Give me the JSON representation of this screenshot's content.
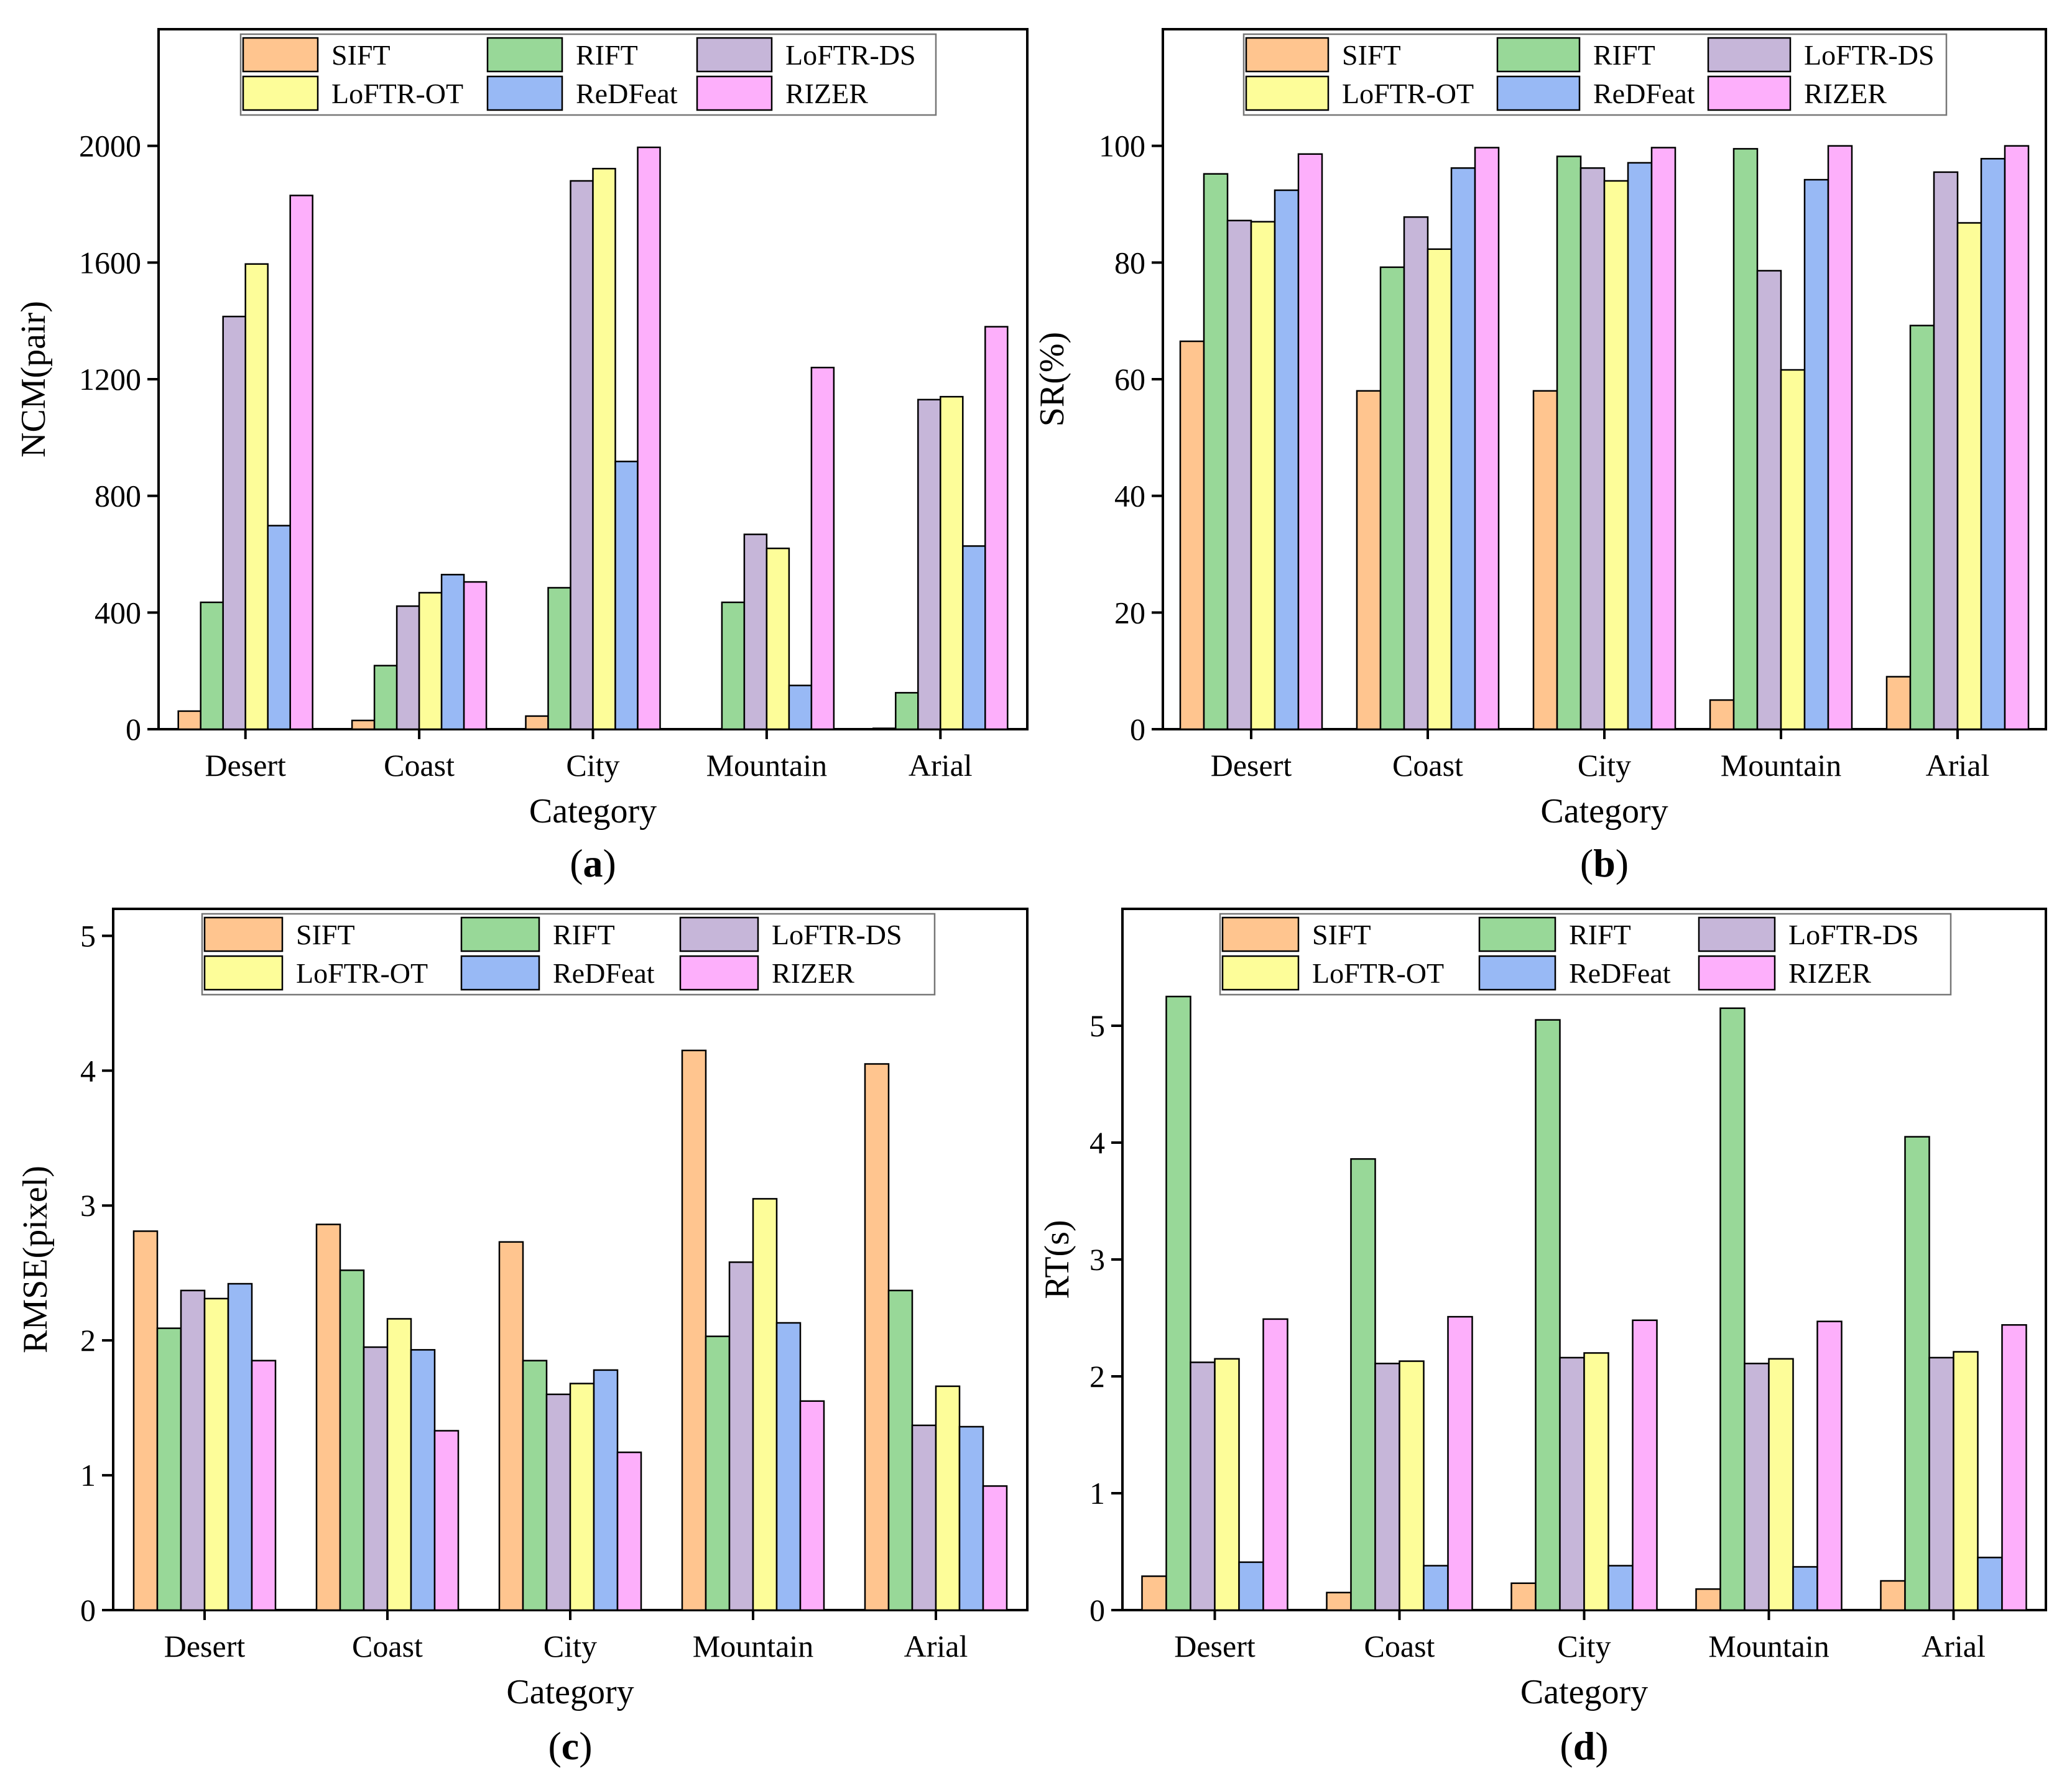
{
  "colors": {
    "SIFT": "#ffc58f",
    "RIFT": "#98d898",
    "LoFTR-DS": "#c6b6d9",
    "LoFTR-OT": "#fdfd99",
    "ReDFeat": "#98b9f5",
    "RIZER": "#fdaffb"
  },
  "chart_data": [
    {
      "type": "bar",
      "panel_label": "(a)",
      "title": "",
      "xlabel": "Category",
      "ylabel": "NCM(pair)",
      "categories": [
        "Desert",
        "Coast",
        "City",
        "Mountain",
        "Arial"
      ],
      "ylim": [
        0,
        2400
      ],
      "yticks": [
        0,
        400,
        800,
        1200,
        1600,
        2000
      ],
      "legend_position": "top",
      "series": [
        {
          "name": "SIFT",
          "values": [
            62,
            30,
            45,
            0,
            3
          ]
        },
        {
          "name": "RIFT",
          "values": [
            435,
            218,
            485,
            435,
            125
          ]
        },
        {
          "name": "LoFTR-DS",
          "values": [
            1415,
            422,
            1880,
            668,
            1130
          ]
        },
        {
          "name": "LoFTR-OT",
          "values": [
            1595,
            468,
            1922,
            620,
            1140
          ]
        },
        {
          "name": "ReDFeat",
          "values": [
            698,
            530,
            918,
            150,
            628
          ]
        },
        {
          "name": "RIZER",
          "values": [
            1830,
            505,
            1995,
            1240,
            1380
          ]
        }
      ]
    },
    {
      "type": "bar",
      "panel_label": "(b)",
      "title": "",
      "xlabel": "Category",
      "ylabel": "SR(%)",
      "categories": [
        "Desert",
        "Coast",
        "City",
        "Mountain",
        "Arial"
      ],
      "ylim": [
        0,
        120
      ],
      "yticks": [
        0,
        20,
        40,
        60,
        80,
        100
      ],
      "legend_position": "top",
      "series": [
        {
          "name": "SIFT",
          "values": [
            66.5,
            58,
            58,
            5,
            9
          ]
        },
        {
          "name": "RIFT",
          "values": [
            95.2,
            79.2,
            98.2,
            99.5,
            69.2
          ]
        },
        {
          "name": "LoFTR-DS",
          "values": [
            87.2,
            87.8,
            96.2,
            78.6,
            95.5
          ]
        },
        {
          "name": "LoFTR-OT",
          "values": [
            87.0,
            82.3,
            94.0,
            61.6,
            86.8
          ]
        },
        {
          "name": "ReDFeat",
          "values": [
            92.4,
            96.2,
            97.1,
            94.2,
            97.8
          ]
        },
        {
          "name": "RIZER",
          "values": [
            98.6,
            99.7,
            99.7,
            100,
            100
          ]
        }
      ]
    },
    {
      "type": "bar",
      "panel_label": "(c)",
      "title": "",
      "xlabel": "Category",
      "ylabel": "RMSE(pixel)",
      "categories": [
        "Desert",
        "Coast",
        "City",
        "Mountain",
        "Arial"
      ],
      "ylim": [
        0,
        5.2
      ],
      "yticks": [
        0,
        1,
        2,
        3,
        4,
        5
      ],
      "legend_position": "top",
      "series": [
        {
          "name": "SIFT",
          "values": [
            2.81,
            2.86,
            2.73,
            4.15,
            4.05
          ]
        },
        {
          "name": "RIFT",
          "values": [
            2.09,
            2.52,
            1.85,
            2.03,
            2.37
          ]
        },
        {
          "name": "LoFTR-DS",
          "values": [
            2.37,
            1.95,
            1.6,
            2.58,
            1.37
          ]
        },
        {
          "name": "LoFTR-OT",
          "values": [
            2.31,
            2.16,
            1.68,
            3.05,
            1.66
          ]
        },
        {
          "name": "ReDFeat",
          "values": [
            2.42,
            1.93,
            1.78,
            2.13,
            1.36
          ]
        },
        {
          "name": "RIZER",
          "values": [
            1.85,
            1.33,
            1.17,
            1.55,
            0.92
          ]
        }
      ]
    },
    {
      "type": "bar",
      "panel_label": "(d)",
      "title": "",
      "xlabel": "Category",
      "ylabel": "RT(s)",
      "categories": [
        "Desert",
        "Coast",
        "City",
        "Mountain",
        "Arial"
      ],
      "ylim": [
        0,
        6
      ],
      "yticks": [
        0,
        1,
        2,
        3,
        4,
        5
      ],
      "legend_position": "top",
      "series": [
        {
          "name": "SIFT",
          "values": [
            0.29,
            0.15,
            0.23,
            0.18,
            0.25
          ]
        },
        {
          "name": "RIFT",
          "values": [
            5.25,
            3.86,
            5.05,
            5.15,
            4.05
          ]
        },
        {
          "name": "LoFTR-DS",
          "values": [
            2.12,
            2.11,
            2.16,
            2.11,
            2.16
          ]
        },
        {
          "name": "LoFTR-OT",
          "values": [
            2.15,
            2.13,
            2.2,
            2.15,
            2.21
          ]
        },
        {
          "name": "ReDFeat",
          "values": [
            0.41,
            0.38,
            0.38,
            0.37,
            0.45
          ]
        },
        {
          "name": "RIZER",
          "values": [
            2.49,
            2.51,
            2.48,
            2.47,
            2.44
          ]
        }
      ]
    }
  ]
}
